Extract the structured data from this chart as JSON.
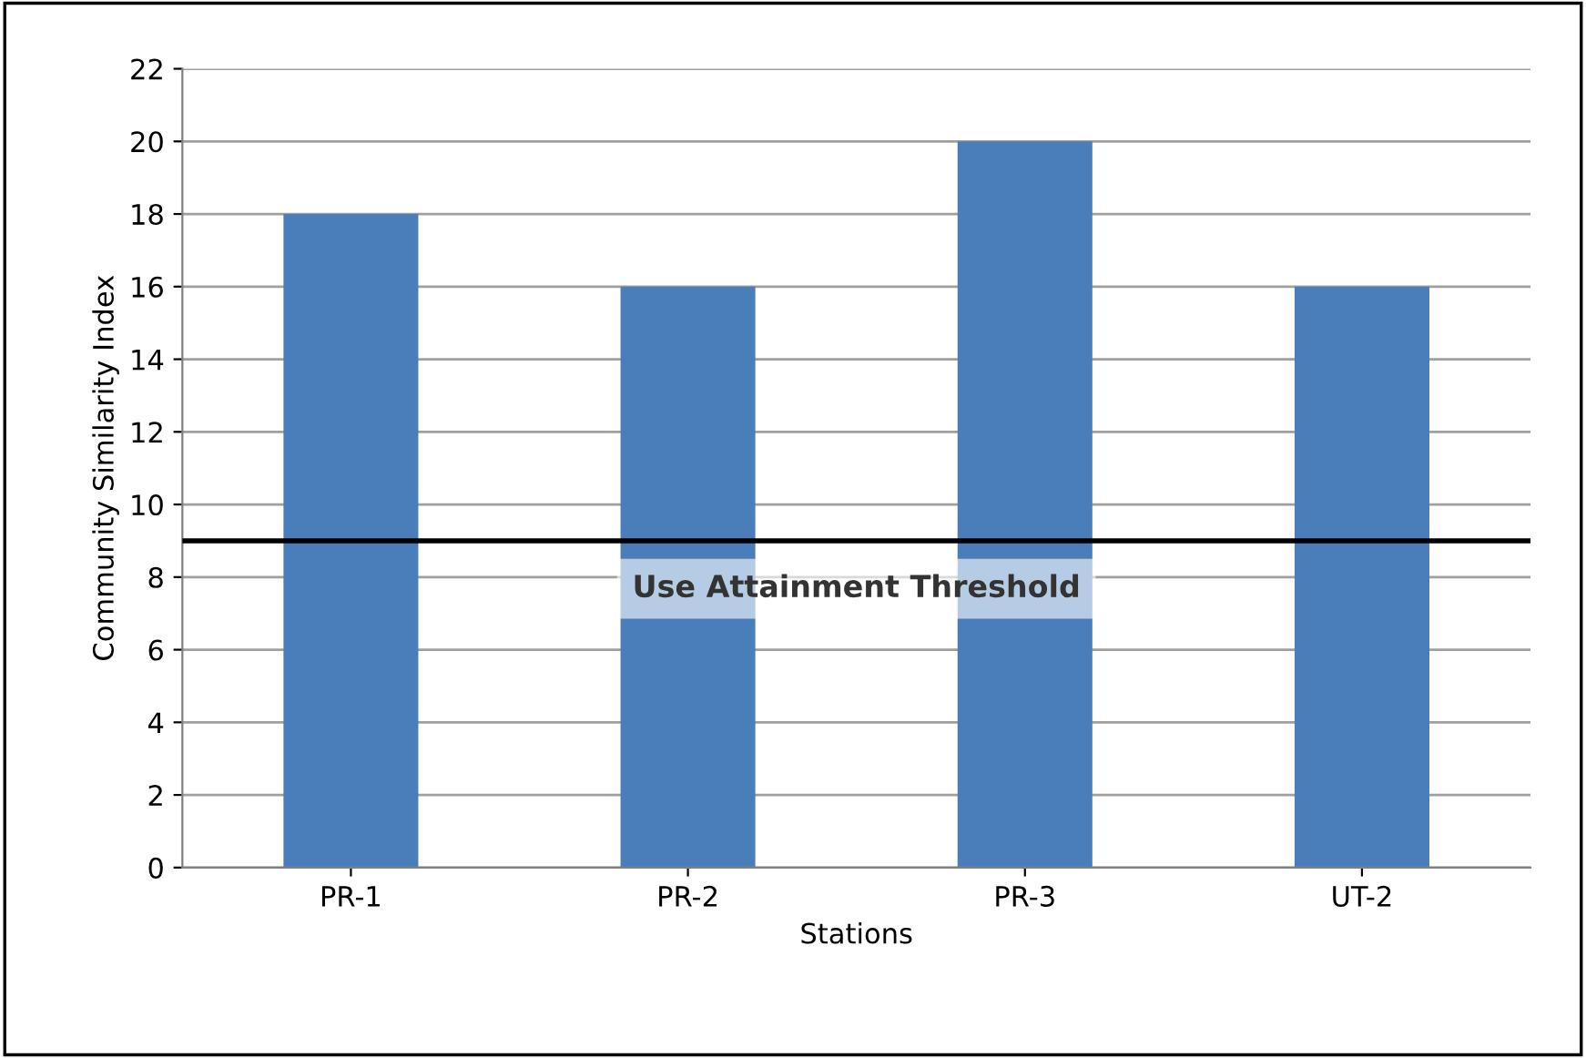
{
  "chart_data": {
    "type": "bar",
    "xlabel": "Stations",
    "ylabel": "Community Similarity Index",
    "categories": [
      "PR-1",
      "PR-2",
      "PR-3",
      "UT-2"
    ],
    "values": [
      18,
      16,
      20,
      16
    ],
    "color": "#4a7ebb",
    "ylim": [
      0,
      22
    ],
    "yticks": [
      0,
      2,
      4,
      6,
      8,
      10,
      12,
      14,
      16,
      18,
      20,
      22
    ],
    "grid": "y",
    "ref_lines": [
      {
        "axis": "y",
        "value": 9,
        "label": "Use Attainment Threshold",
        "color": "#000000",
        "line_style": "solid"
      }
    ]
  }
}
